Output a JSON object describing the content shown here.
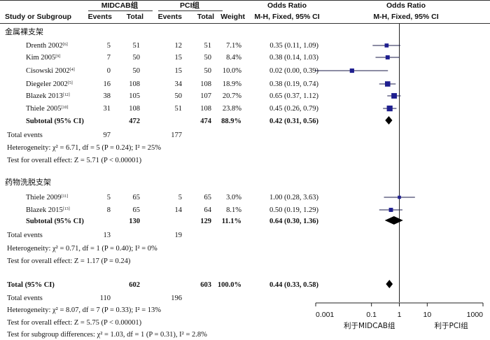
{
  "header": {
    "col_study": "Study or Subgroup",
    "grp1": "MIDCAB组",
    "grp2": "PCI组",
    "events": "Events",
    "total": "Total",
    "weight": "Weight",
    "or_title": "Odds Ratio",
    "or_method": "M-H, Fixed, 95% CI",
    "plot_title": "Odds Ratio",
    "plot_method": "M-H, Fixed, 95% CI"
  },
  "subgroups": [
    {
      "title": "金属裸支架",
      "studies": [
        {
          "name": "Drenth 2002",
          "ref": "[6]",
          "e1": "5",
          "t1": "51",
          "e2": "12",
          "t2": "51",
          "w": "7.1%",
          "ci": "0.35 (0.11, 1.09)",
          "or": 0.35,
          "lo": 0.11,
          "hi": 1.09
        },
        {
          "name": "Kim 2005",
          "ref": "[9]",
          "e1": "7",
          "t1": "50",
          "e2": "15",
          "t2": "50",
          "w": "8.4%",
          "ci": "0.38 (0.14, 1.03)",
          "or": 0.38,
          "lo": 0.14,
          "hi": 1.03
        },
        {
          "name": "Cisowski 2002",
          "ref": "[4]",
          "e1": "0",
          "t1": "50",
          "e2": "15",
          "t2": "50",
          "w": "10.0%",
          "ci": "0.02 (0.00, 0.39)",
          "or": 0.02,
          "lo": 0.0009,
          "hi": 0.39
        },
        {
          "name": "Diegeler 2002",
          "ref": "[5]",
          "e1": "16",
          "t1": "108",
          "e2": "34",
          "t2": "108",
          "w": "18.9%",
          "ci": "0.38 (0.19, 0.74)",
          "or": 0.38,
          "lo": 0.19,
          "hi": 0.74
        },
        {
          "name": "Blazek 2013",
          "ref": "[12]",
          "e1": "38",
          "t1": "105",
          "e2": "50",
          "t2": "107",
          "w": "20.7%",
          "ci": "0.65 (0.37, 1.12)",
          "or": 0.65,
          "lo": 0.37,
          "hi": 1.12
        },
        {
          "name": "Thiele 2005",
          "ref": "[10]",
          "e1": "31",
          "t1": "108",
          "e2": "51",
          "t2": "108",
          "w": "23.8%",
          "ci": "0.45 (0.26, 0.79)",
          "or": 0.45,
          "lo": 0.26,
          "hi": 0.79
        }
      ],
      "subtotal": {
        "label": "Subtotal (95% CI)",
        "t1": "472",
        "t2": "474",
        "w": "88.9%",
        "ci": "0.42 (0.31, 0.56)",
        "or": 0.42,
        "lo": 0.31,
        "hi": 0.56
      },
      "total_events": {
        "label": "Total events",
        "e1": "97",
        "e2": "177"
      },
      "heterogeneity": "Heterogeneity: χ² = 6.71, df = 5 (P = 0.24); I² = 25%",
      "overall": "Test for overall effect: Z = 5.71 (P < 0.00001)"
    },
    {
      "title": "药物洗脱支架",
      "studies": [
        {
          "name": "Thiele 2009",
          "ref": "[11]",
          "e1": "5",
          "t1": "65",
          "e2": "5",
          "t2": "65",
          "w": "3.0%",
          "ci": "1.00 (0.28, 3.63)",
          "or": 1.0,
          "lo": 0.28,
          "hi": 3.63
        },
        {
          "name": "Blazek 2015",
          "ref": "[13]",
          "e1": "8",
          "t1": "65",
          "e2": "14",
          "t2": "64",
          "w": "8.1%",
          "ci": "0.50 (0.19, 1.29)",
          "or": 0.5,
          "lo": 0.19,
          "hi": 1.29
        }
      ],
      "subtotal": {
        "label": "Subtotal (95% CI)",
        "t1": "130",
        "t2": "129",
        "w": "11.1%",
        "ci": "0.64 (0.30, 1.36)",
        "or": 0.64,
        "lo": 0.3,
        "hi": 1.36
      },
      "total_events": {
        "label": "Total events",
        "e1": "13",
        "e2": "19"
      },
      "heterogeneity": "Heterogeneity: χ² = 0.71, df = 1 (P = 0.40); I² = 0%",
      "overall": "Test for overall effect: Z = 1.17 (P = 0.24)"
    }
  ],
  "total": {
    "label": "Total (95% CI)",
    "t1": "602",
    "t2": "603",
    "w": "100.0%",
    "ci": "0.44 (0.33, 0.58)",
    "or": 0.44,
    "lo": 0.33,
    "hi": 0.58
  },
  "total_events": {
    "label": "Total events",
    "e1": "110",
    "e2": "196"
  },
  "footer": {
    "heterogeneity": "Heterogeneity: χ² = 8.07, df = 7 (P = 0.33); I² = 13%",
    "overall": "Test for overall effect: Z = 5.75 (P < 0.00001)",
    "subgroup": "Test for subgroup differences: χ² = 1.03, df = 1 (P = 0.31), I² = 2.8%"
  },
  "chart_data": {
    "type": "forest",
    "scale": "log",
    "xlim": [
      0.001,
      1000
    ],
    "ticks": [
      "0.001",
      "0.1",
      "1",
      "10",
      "1000"
    ],
    "tick_values": [
      0.001,
      0.1,
      1,
      10,
      1000
    ],
    "favours_left": "利于MIDCAB组",
    "favours_right": "利于PCI组",
    "colors": {
      "marker": "#1f1f8f",
      "line": "#1a1a4a",
      "diamond": "#000000"
    }
  }
}
